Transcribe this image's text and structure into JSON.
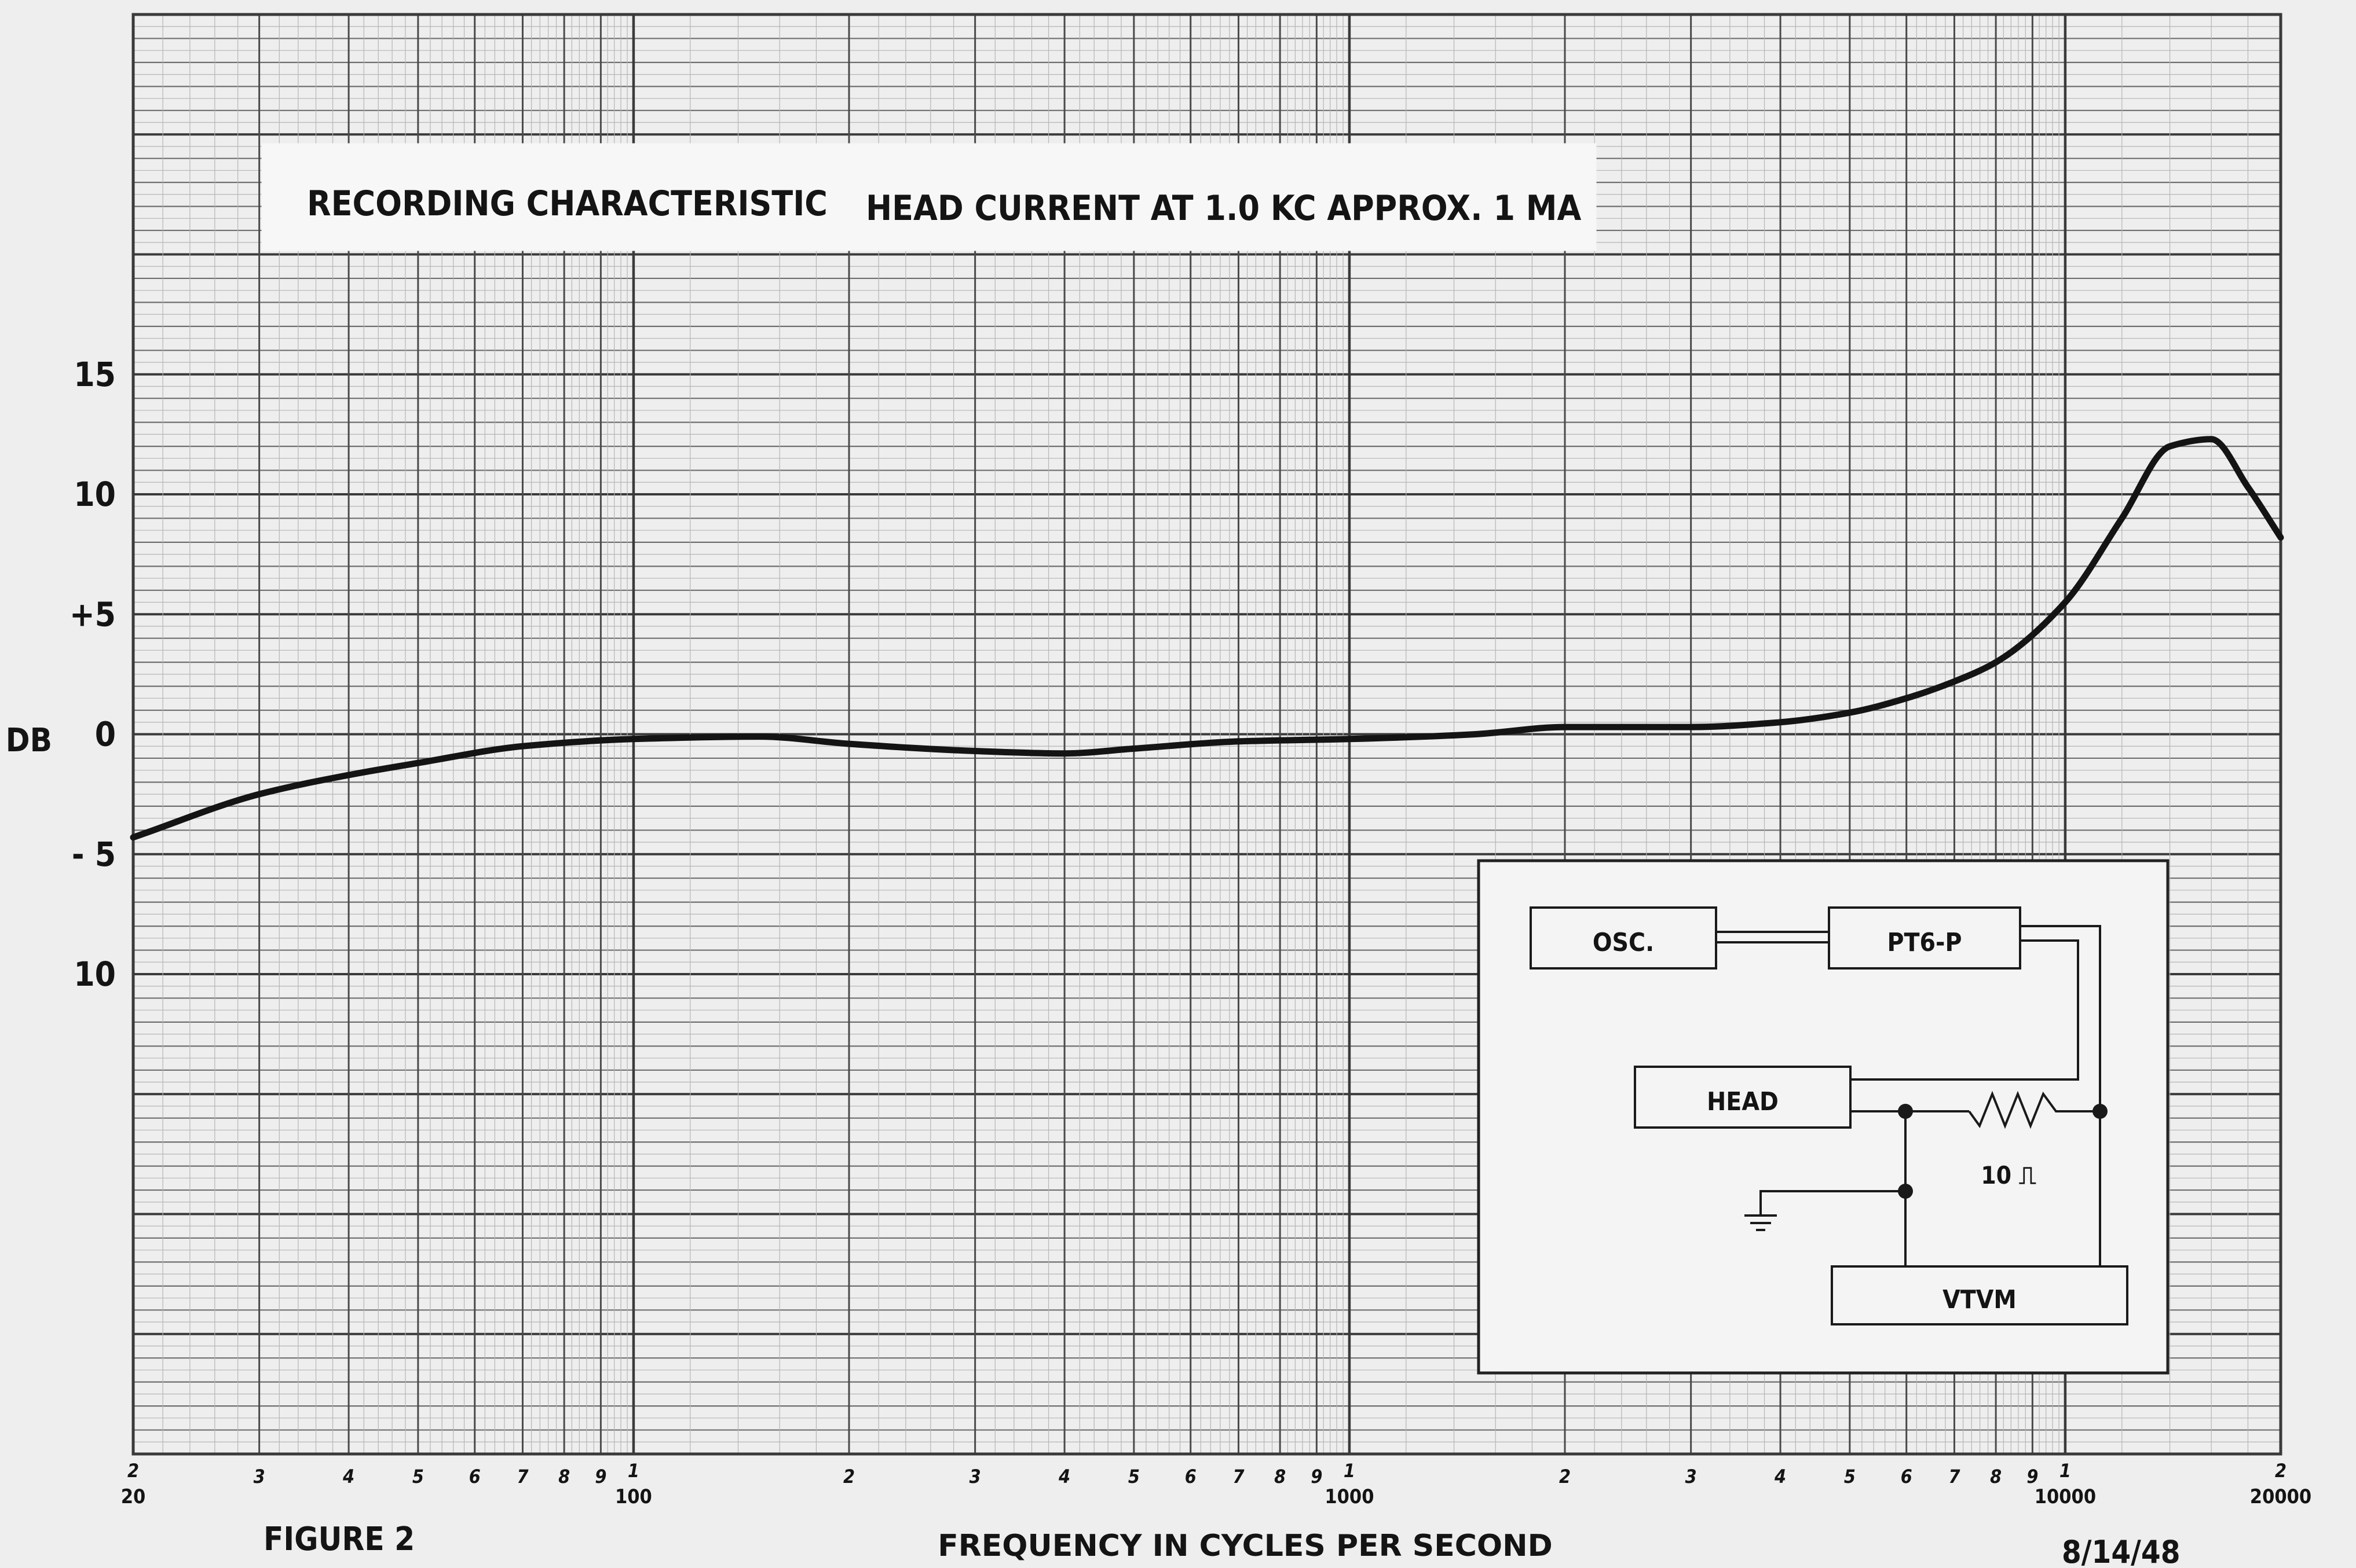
{
  "chart_data": {
    "type": "line",
    "title": "RECORDING CHARACTERISTIC",
    "subtitle": "HEAD CURRENT AT 1.0 KC APPROX. 1 MA",
    "xlabel": "FREQUENCY IN CYCLES PER SECOND",
    "ylabel": "DB",
    "x_scale": "log",
    "xlim": [
      20,
      20000
    ],
    "ylim": [
      -30,
      30
    ],
    "grid": true,
    "x_decade_labels": [
      {
        "value": 20,
        "digit": "2",
        "label": "20"
      },
      {
        "value": 100,
        "digit": "1",
        "label": "100"
      },
      {
        "value": 1000,
        "digit": "1",
        "label": "1000"
      },
      {
        "value": 10000,
        "digit": "1",
        "label": "10000"
      },
      {
        "value": 20000,
        "digit": "2",
        "label": "20000"
      }
    ],
    "x_digit_labels": [
      {
        "value": 30,
        "label": "3"
      },
      {
        "value": 40,
        "label": "4"
      },
      {
        "value": 50,
        "label": "5"
      },
      {
        "value": 60,
        "label": "6"
      },
      {
        "value": 70,
        "label": "7"
      },
      {
        "value": 80,
        "label": "8"
      },
      {
        "value": 90,
        "label": "9"
      },
      {
        "value": 200,
        "label": "2"
      },
      {
        "value": 300,
        "label": "3"
      },
      {
        "value": 400,
        "label": "4"
      },
      {
        "value": 500,
        "label": "5"
      },
      {
        "value": 600,
        "label": "6"
      },
      {
        "value": 700,
        "label": "7"
      },
      {
        "value": 800,
        "label": "8"
      },
      {
        "value": 900,
        "label": "9"
      },
      {
        "value": 2000,
        "label": "2"
      },
      {
        "value": 3000,
        "label": "3"
      },
      {
        "value": 4000,
        "label": "4"
      },
      {
        "value": 5000,
        "label": "5"
      },
      {
        "value": 6000,
        "label": "6"
      },
      {
        "value": 7000,
        "label": "7"
      },
      {
        "value": 8000,
        "label": "8"
      },
      {
        "value": 9000,
        "label": "9"
      }
    ],
    "y_tick_labels": [
      {
        "value": 15,
        "label": "15"
      },
      {
        "value": 10,
        "label": "10"
      },
      {
        "value": 5,
        "label": "+5"
      },
      {
        "value": 0,
        "label": "0"
      },
      {
        "value": -5,
        "label": "- 5"
      },
      {
        "value": -10,
        "label": "10"
      }
    ],
    "series": [
      {
        "x": [
          20,
          30,
          40,
          50,
          70,
          100,
          150,
          200,
          300,
          400,
          500,
          700,
          1000,
          1500,
          2000,
          3000,
          4000,
          5000,
          6000,
          7000,
          8000,
          10000,
          12000,
          14000,
          16000,
          18000,
          20000
        ],
        "y": [
          -4.3,
          -2.5,
          -1.7,
          -1.2,
          -0.5,
          -0.2,
          -0.1,
          -0.4,
          -0.7,
          -0.8,
          -0.6,
          -0.3,
          -0.2,
          0.0,
          0.3,
          0.3,
          0.5,
          0.9,
          1.5,
          2.2,
          3.0,
          5.5,
          9.0,
          12.0,
          12.3,
          10.3,
          8.2
        ]
      }
    ]
  },
  "colors": {
    "paper": "#eeeeee",
    "grid_minor": "#b5b5b5",
    "grid_major": "#3a3a3a",
    "ink": "#141414"
  },
  "inset": {
    "osc_label": "OSC.",
    "pt6p_label": "PT6-P",
    "head_label": "HEAD",
    "vtvm_label": "VTVM",
    "resistor_label": "10 ⎍"
  },
  "footer": {
    "figure_label": "FIGURE 2",
    "date": "8/14/48"
  }
}
